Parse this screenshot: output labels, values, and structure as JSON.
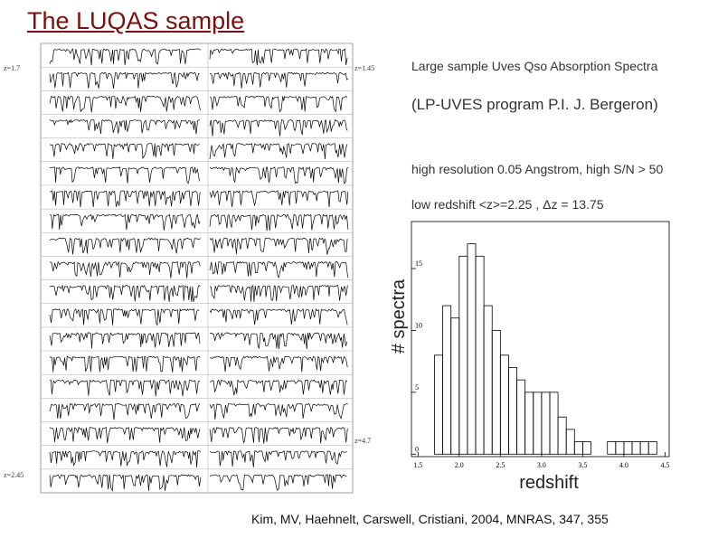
{
  "slide": {
    "title": "The LUQAS sample",
    "description": "Large sample Uves Qso Absorption Spectra",
    "program": "(LP-UVES program P.I. J. Bergeron)",
    "details": [
      "high resolution 0.05 Angstrom, high S/N > 50",
      "low redshift <z>=2.25 , Δz = 13.75"
    ],
    "citation": "Kim, MV, Haehnelt, Carswell, Cristiani, 2004, MNRAS, 347, 355",
    "collage_labels": [
      "z=1.7",
      "z=1.45",
      "z=4.7",
      "z=2.45"
    ]
  },
  "chart_data": {
    "type": "histogram",
    "xlabel": "redshift",
    "ylabel": "# spectra",
    "bins": [
      1.7,
      1.8,
      1.9,
      2.0,
      2.1,
      2.2,
      2.3,
      2.4,
      2.5,
      2.6,
      2.7,
      2.8,
      2.9,
      3.0,
      3.1,
      3.2,
      3.3,
      3.4,
      3.5,
      3.6,
      3.7,
      3.8,
      3.9,
      4.0,
      4.1,
      4.2,
      4.3,
      4.4
    ],
    "counts": [
      8,
      12,
      11,
      16,
      17,
      16,
      12,
      10,
      8,
      7,
      6,
      5,
      5,
      5,
      5,
      3,
      2,
      1,
      1,
      0,
      0,
      1,
      1,
      1,
      1,
      1,
      1
    ],
    "xlim": [
      1.42,
      4.55
    ],
    "ylim": [
      -0.2,
      18.8
    ],
    "xticks": [
      1.5,
      {
        "value": 2,
        "label": "2.0"
      },
      2.5,
      {
        "value": 3,
        "label": "3.0"
      },
      3.5,
      {
        "value": 4,
        "label": "4.0"
      },
      4.5
    ],
    "yticks": [
      0,
      5,
      10,
      15
    ],
    "color": "#000000"
  }
}
